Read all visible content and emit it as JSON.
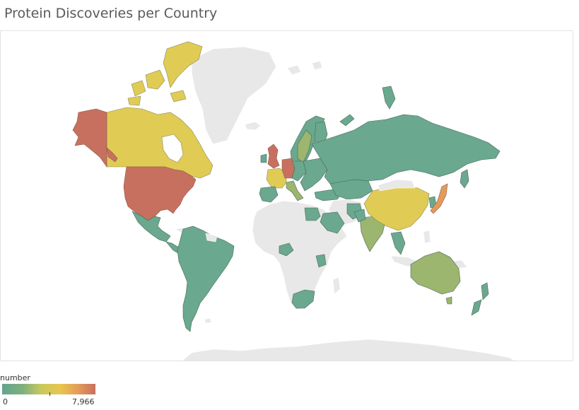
{
  "title": "Protein Discoveries per Country",
  "legend": {
    "title": "number",
    "min_label": "0",
    "max_label": "7,966",
    "min": 0,
    "max": 7966,
    "color_scale": [
      "#63a48f",
      "#7fb07f",
      "#c9c95c",
      "#e8c64f",
      "#e39b5a",
      "#c8705f"
    ]
  },
  "map": {
    "type": "choropleth",
    "no_data_color": "#e8e8e8",
    "border_color": "#ffffff",
    "level_colors": {
      "high": "#c8705f",
      "upper_mid": "#e39b5a",
      "mid": "#e0cb55",
      "low_mid": "#9cb56f",
      "low": "#6aa88f"
    },
    "regions": [
      {
        "name": "United States",
        "level": "high"
      },
      {
        "name": "Alaska",
        "level": "high"
      },
      {
        "name": "Canada",
        "level": "mid"
      },
      {
        "name": "Greenland",
        "level": "none"
      },
      {
        "name": "Mexico",
        "level": "low"
      },
      {
        "name": "South America",
        "level": "low"
      },
      {
        "name": "United Kingdom",
        "level": "high"
      },
      {
        "name": "Germany",
        "level": "high"
      },
      {
        "name": "France",
        "level": "mid"
      },
      {
        "name": "Spain",
        "level": "low"
      },
      {
        "name": "Scandinavia",
        "level": "low"
      },
      {
        "name": "Russia",
        "level": "low"
      },
      {
        "name": "China",
        "level": "mid"
      },
      {
        "name": "Japan",
        "level": "upper_mid"
      },
      {
        "name": "India",
        "level": "low_mid"
      },
      {
        "name": "Australia",
        "level": "low_mid"
      },
      {
        "name": "New Zealand",
        "level": "low"
      },
      {
        "name": "South Africa",
        "level": "low"
      },
      {
        "name": "Africa",
        "level": "none"
      },
      {
        "name": "Antarctica",
        "level": "none"
      }
    ]
  }
}
